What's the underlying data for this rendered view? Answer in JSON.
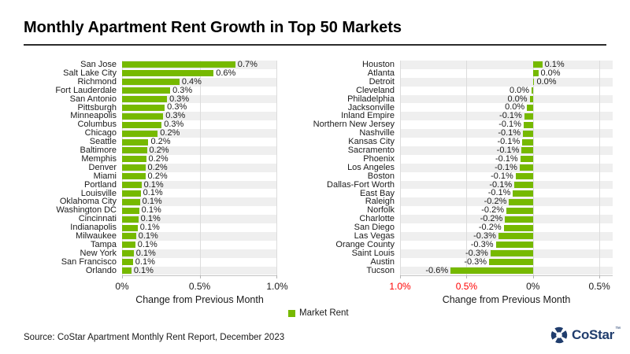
{
  "title": "Monthly Apartment Rent Growth in Top 50 Markets",
  "source": "Source: CoStar Apartment Monthly Rent Report, December 2023",
  "legend": {
    "label": "Market Rent",
    "position": "bottom-center"
  },
  "logo": {
    "text": "CoStar",
    "tm": "™"
  },
  "colors": {
    "bar_green": "#76b900",
    "stripe_gray": "#efefef",
    "gridline": "#dcdcdc",
    "axis_line": "#c3c3c3",
    "negative_tick_red": "#ff0000",
    "text": "#1a1a1a",
    "logo_navy": "#203d6d"
  },
  "chart_data": [
    {
      "type": "bar",
      "orientation": "horizontal",
      "title": "",
      "xlabel": "Change from Previous Month",
      "ylabel": "",
      "series_name": "Market Rent",
      "xlim": [
        0,
        1.0
      ],
      "grid": true,
      "ticks": [
        {
          "v": 0.0,
          "label": "0%",
          "red": false
        },
        {
          "v": 0.5,
          "label": "0.5%",
          "red": false
        },
        {
          "v": 1.0,
          "label": "1.0%",
          "red": false
        }
      ],
      "categories": [
        "San Jose",
        "Salt Lake City",
        "Richmond",
        "Fort Lauderdale",
        "San Antonio",
        "Pittsburgh",
        "Minneapolis",
        "Columbus",
        "Chicago",
        "Seattle",
        "Baltimore",
        "Memphis",
        "Denver",
        "Miami",
        "Portland",
        "Louisville",
        "Oklahoma City",
        "Washington DC",
        "Cincinnati",
        "Indianapolis",
        "Milwaukee",
        "Tampa",
        "New York",
        "San Francisco",
        "Orlando"
      ],
      "values": [
        0.73,
        0.59,
        0.37,
        0.31,
        0.29,
        0.275,
        0.265,
        0.255,
        0.23,
        0.17,
        0.16,
        0.155,
        0.15,
        0.15,
        0.125,
        0.12,
        0.115,
        0.11,
        0.105,
        0.1,
        0.09,
        0.085,
        0.075,
        0.07,
        0.06
      ],
      "value_labels": [
        "0.7%",
        "0.6%",
        "0.4%",
        "0.3%",
        "0.3%",
        "0.3%",
        "0.3%",
        "0.3%",
        "0.2%",
        "0.2%",
        "0.2%",
        "0.2%",
        "0.2%",
        "0.2%",
        "0.1%",
        "0.1%",
        "0.1%",
        "0.1%",
        "0.1%",
        "0.1%",
        "0.1%",
        "0.1%",
        "0.1%",
        "0.1%",
        "0.1%"
      ]
    },
    {
      "type": "bar",
      "orientation": "horizontal",
      "title": "",
      "xlabel": "Change from Previous Month",
      "ylabel": "",
      "series_name": "Market Rent",
      "xlim": [
        -1.0,
        0.6
      ],
      "grid": true,
      "ticks": [
        {
          "v": -1.0,
          "label": "1.0%",
          "red": true
        },
        {
          "v": -0.5,
          "label": "0.5%",
          "red": true
        },
        {
          "v": 0.0,
          "label": "0%",
          "red": false
        },
        {
          "v": 0.5,
          "label": "0.5%",
          "red": false
        }
      ],
      "categories": [
        "Houston",
        "Atlanta",
        "Detroit",
        "Cleveland",
        "Philadelphia",
        "Jacksonville",
        "Inland Empire",
        "Northern New Jersey",
        "Nashville",
        "Kansas City",
        "Sacramento",
        "Phoenix",
        "Los Angeles",
        "Boston",
        "Dallas-Fort Worth",
        "East Bay",
        "Raleigh",
        "Norfolk",
        "Charlotte",
        "San Diego",
        "Las Vegas",
        "Orange County",
        "Saint Louis",
        "Austin",
        "Tucson"
      ],
      "values": [
        0.07,
        0.04,
        0.01,
        -0.01,
        -0.025,
        -0.045,
        -0.065,
        -0.07,
        -0.075,
        -0.08,
        -0.085,
        -0.095,
        -0.1,
        -0.13,
        -0.14,
        -0.15,
        -0.18,
        -0.2,
        -0.21,
        -0.22,
        -0.26,
        -0.28,
        -0.32,
        -0.33,
        -0.62
      ],
      "value_labels": [
        "0.1%",
        "0.0%",
        "0.0%",
        "0.0%",
        "0.0%",
        "0.0%",
        "-0.1%",
        "-0.1%",
        "-0.1%",
        "-0.1%",
        "-0.1%",
        "-0.1%",
        "-0.1%",
        "-0.1%",
        "-0.1%",
        "-0.1%",
        "-0.2%",
        "-0.2%",
        "-0.2%",
        "-0.2%",
        "-0.3%",
        "-0.3%",
        "-0.3%",
        "-0.3%",
        "-0.6%"
      ]
    }
  ]
}
